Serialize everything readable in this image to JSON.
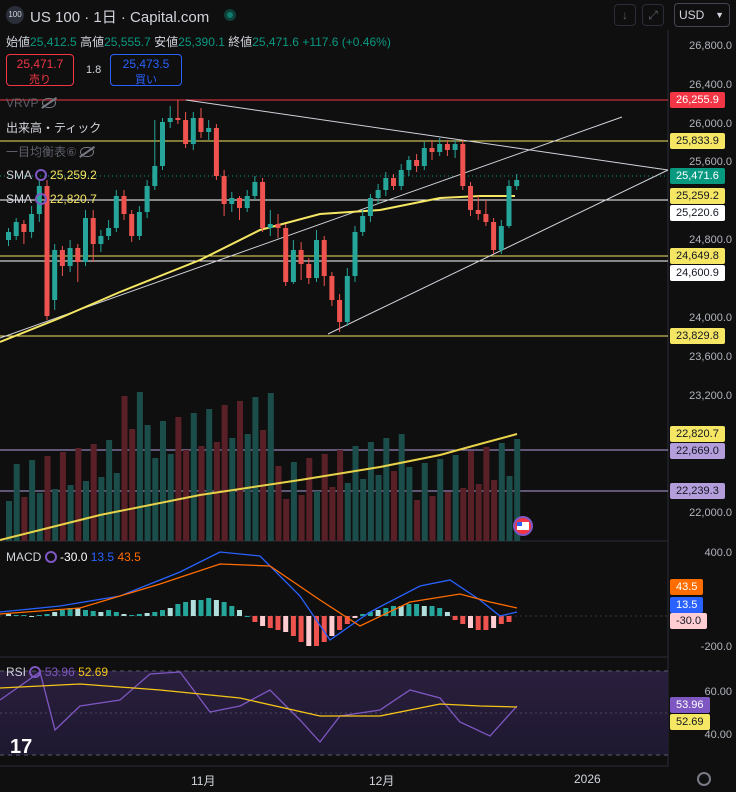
{
  "header": {
    "symbol_icon": "100",
    "symbol_title": "US 100 · 1日 · Capital.com",
    "currency": "USD",
    "ohlc": {
      "open_label": "始値",
      "open": "25,412.5",
      "high_label": "高値",
      "high": "25,555.7",
      "low_label": "安値",
      "low": "25,390.1",
      "close_label": "終値",
      "close": "25,471.6",
      "change": "+117.6 (+0.46%)"
    }
  },
  "trade": {
    "sell_price": "25,471.7",
    "sell_label": "売り",
    "spread": "1.8",
    "buy_price": "25,473.5",
    "buy_label": "買い"
  },
  "legend": {
    "vrvp": "VRVP",
    "volume": "出来高・ティック",
    "ichimoku": "一目均衡表",
    "ichimoku_num": "⑥",
    "sma1_label": "SMA",
    "sma1_value": "25,259.2",
    "sma2_label": "SMA",
    "sma2_value": "22,820.7",
    "macd_label": "MACD",
    "macd_hist": "-30.0",
    "macd_line": "13.5",
    "macd_signal": "43.5",
    "rsi_label": "RSI",
    "rsi_value": "53.96",
    "rsi_ma": "52.69"
  },
  "price_scale": [
    "26,800.0",
    "26,400.0",
    "26,000.0",
    "25,600.0",
    "24,800.0",
    "24,000.0",
    "23,600.0",
    "23,200.0",
    "22,000.0"
  ],
  "macd_scale": [
    "400.0",
    "-200.0"
  ],
  "rsi_scale": [
    "60.00",
    "40.00"
  ],
  "time_axis": [
    "11月",
    "12月",
    "2026"
  ],
  "price_tags": [
    {
      "text": "26,255.9",
      "bg": "#f23645",
      "fg": "#ffffff"
    },
    {
      "text": "25,833.9",
      "bg": "#f5e663",
      "fg": "#131722"
    },
    {
      "text": "25,471.6",
      "bg": "#089981",
      "fg": "#ffffff"
    },
    {
      "text": "25,259.2",
      "bg": "#f5e663",
      "fg": "#131722"
    },
    {
      "text": "25,220.6",
      "bg": "#ffffff",
      "fg": "#131722"
    },
    {
      "text": "24,649.8",
      "bg": "#f5e663",
      "fg": "#131722"
    },
    {
      "text": "24,600.9",
      "bg": "#ffffff",
      "fg": "#131722"
    },
    {
      "text": "23,829.8",
      "bg": "#f5e663",
      "fg": "#131722"
    },
    {
      "text": "22,820.7",
      "bg": "#f5e663",
      "fg": "#131722"
    },
    {
      "text": "22,669.0",
      "bg": "#b39ddb",
      "fg": "#131722"
    },
    {
      "text": "22,239.3",
      "bg": "#b39ddb",
      "fg": "#131722"
    }
  ],
  "macd_tags": [
    {
      "text": "43.5",
      "bg": "#ff6d00",
      "fg": "#ffffff"
    },
    {
      "text": "13.5",
      "bg": "#2962ff",
      "fg": "#ffffff"
    },
    {
      "text": "-30.0",
      "bg": "#ffcdd2",
      "fg": "#131722"
    }
  ],
  "rsi_tags": [
    {
      "text": "53.96",
      "bg": "#7e57c2",
      "fg": "#ffffff"
    },
    {
      "text": "52.69",
      "bg": "#f5e663",
      "fg": "#131722"
    }
  ],
  "colors": {
    "up": "#26a69a",
    "down": "#ef5350",
    "sma_short": "#f5e663",
    "sma_long": "#e8d24a",
    "macd": "#2962ff",
    "signal": "#ff6d00",
    "rsi": "#7e57c2",
    "rsi_ma": "#f5c518"
  },
  "icons": {
    "download": "download-icon",
    "fullscreen": "fullscreen-icon",
    "settings": "gear-icon",
    "logo": "tradingview-logo"
  }
}
